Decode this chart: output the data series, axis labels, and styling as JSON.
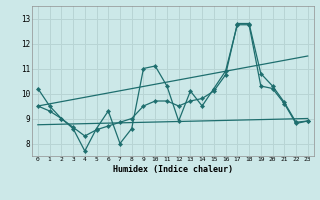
{
  "title": "",
  "xlabel": "Humidex (Indice chaleur)",
  "bg_color": "#cce8e8",
  "grid_color": "#b8d4d4",
  "line_color": "#1e6e6e",
  "xlim": [
    -0.5,
    23.5
  ],
  "ylim": [
    7.5,
    13.5
  ],
  "xticks": [
    0,
    1,
    2,
    3,
    4,
    5,
    6,
    7,
    8,
    9,
    10,
    11,
    12,
    13,
    14,
    15,
    16,
    17,
    18,
    19,
    20,
    21,
    22,
    23
  ],
  "yticks": [
    8,
    9,
    10,
    11,
    12,
    13
  ],
  "line1_x": [
    0,
    1,
    2,
    3,
    4,
    5,
    6,
    7,
    8,
    9,
    10,
    11,
    12,
    13,
    14,
    15,
    16,
    17,
    18,
    19,
    20,
    21,
    22,
    23
  ],
  "line1_y": [
    10.2,
    9.5,
    9.0,
    8.6,
    7.7,
    8.6,
    9.3,
    8.0,
    8.6,
    11.0,
    11.1,
    10.3,
    8.9,
    10.1,
    9.5,
    10.2,
    10.9,
    12.75,
    12.75,
    10.3,
    10.2,
    9.6,
    8.8,
    8.9
  ],
  "line2_x": [
    0,
    1,
    2,
    3,
    4,
    5,
    6,
    7,
    8,
    9,
    10,
    11,
    12,
    13,
    14,
    15,
    16,
    17,
    18,
    19,
    20,
    21,
    22,
    23
  ],
  "line2_y": [
    9.5,
    9.3,
    9.0,
    8.65,
    8.3,
    8.55,
    8.7,
    8.85,
    9.0,
    9.5,
    9.7,
    9.7,
    9.5,
    9.7,
    9.8,
    10.1,
    10.75,
    12.8,
    12.8,
    10.8,
    10.3,
    9.65,
    8.85,
    8.9
  ],
  "trend1_x": [
    0,
    23
  ],
  "trend1_y": [
    9.5,
    11.5
  ],
  "trend2_x": [
    0,
    23
  ],
  "trend2_y": [
    8.75,
    9.0
  ]
}
